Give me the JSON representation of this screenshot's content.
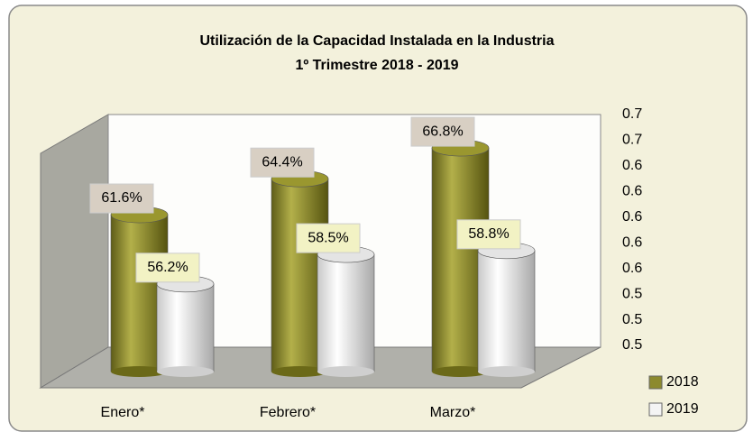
{
  "chart_data": {
    "type": "bar",
    "title": "Utilización de la Capacidad Instalada en la Industria",
    "subtitle": "1º Trimestre 2018 - 2019",
    "categories": [
      "Enero*",
      "Febrero*",
      "Marzo*"
    ],
    "series": [
      {
        "name": "2018",
        "color": "#8c8a2e",
        "values": [
          0.616,
          0.644,
          0.668
        ],
        "value_labels": [
          "61.6%",
          "64.4%",
          "66.8%"
        ]
      },
      {
        "name": "2019",
        "color": "#f2f2f2",
        "values": [
          0.562,
          0.585,
          0.588
        ],
        "value_labels": [
          "56.2%",
          "58.5%",
          "58.8%"
        ]
      }
    ],
    "ylim": [
      0.5,
      0.68
    ],
    "yticks": [
      {
        "value": 0.5,
        "label": "0.5"
      },
      {
        "value": 0.52,
        "label": "0.5"
      },
      {
        "value": 0.54,
        "label": "0.5"
      },
      {
        "value": 0.56,
        "label": "0.6"
      },
      {
        "value": 0.58,
        "label": "0.6"
      },
      {
        "value": 0.6,
        "label": "0.6"
      },
      {
        "value": 0.62,
        "label": "0.6"
      },
      {
        "value": 0.64,
        "label": "0.6"
      },
      {
        "value": 0.66,
        "label": "0.7"
      },
      {
        "value": 0.68,
        "label": "0.7"
      }
    ]
  }
}
